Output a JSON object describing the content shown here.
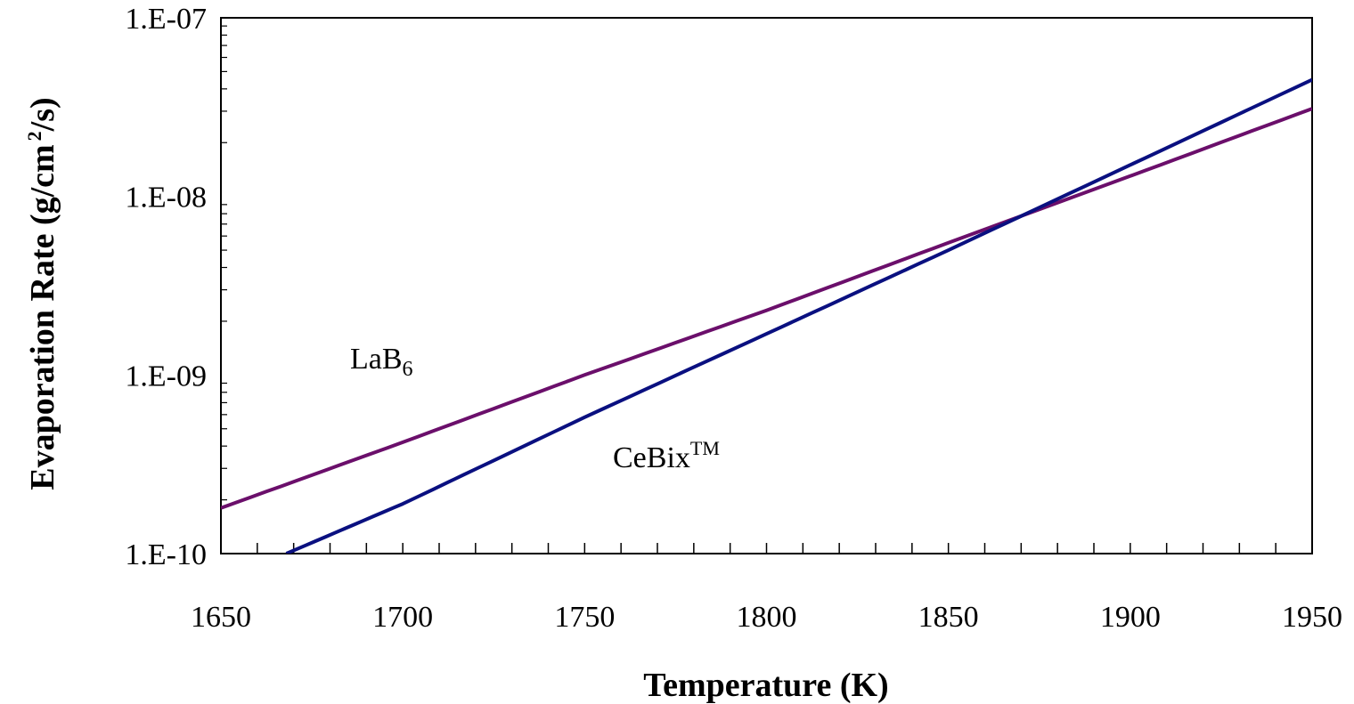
{
  "chart_data": {
    "type": "line",
    "xlabel": "Temperature  (K)",
    "ylabel": {
      "main": "Evaporation Rate  (g/cm",
      "superscript": "2",
      "tail": "/s)"
    },
    "x_ticks": [
      {
        "value": 1650,
        "label": "1650"
      },
      {
        "value": 1700,
        "label": "1700"
      },
      {
        "value": 1750,
        "label": "1750"
      },
      {
        "value": 1800,
        "label": "1800"
      },
      {
        "value": 1850,
        "label": "1850"
      },
      {
        "value": 1900,
        "label": "1900"
      },
      {
        "value": 1950,
        "label": "1950"
      }
    ],
    "y_ticks": [
      {
        "value": 1e-10,
        "label": "1.E-10"
      },
      {
        "value": 1e-09,
        "label": "1.E-09"
      },
      {
        "value": 1e-08,
        "label": "1.E-08"
      },
      {
        "value": 1e-07,
        "label": "1.E-07"
      }
    ],
    "xlim": [
      1650,
      1950
    ],
    "ylim": [
      1e-10,
      1e-07
    ],
    "y_scale": "log",
    "grid": false,
    "x_minor_step": 10,
    "series": [
      {
        "name": "LaB6",
        "color": "#6B0F6B",
        "x": [
          1650,
          1700,
          1750,
          1800,
          1850,
          1900,
          1950
        ],
        "y": [
          1.8e-10,
          4.2e-10,
          1e-09,
          2.3e-09,
          5.5e-09,
          1.3e-08,
          3.1e-08
        ]
      },
      {
        "name": "CeBix™",
        "color": "#0A1080",
        "x": [
          1668,
          1700,
          1750,
          1800,
          1850,
          1900,
          1950
        ],
        "y": [
          1e-10,
          1.9e-10,
          5.8e-10,
          1.7e-09,
          5e-09,
          1.5e-08,
          4.5e-08
        ]
      }
    ],
    "annotations": [
      {
        "id": "lab6",
        "base": "LaB",
        "subscript": "6"
      },
      {
        "id": "cebix",
        "base": "CeBix",
        "superscript": "TM"
      }
    ]
  }
}
